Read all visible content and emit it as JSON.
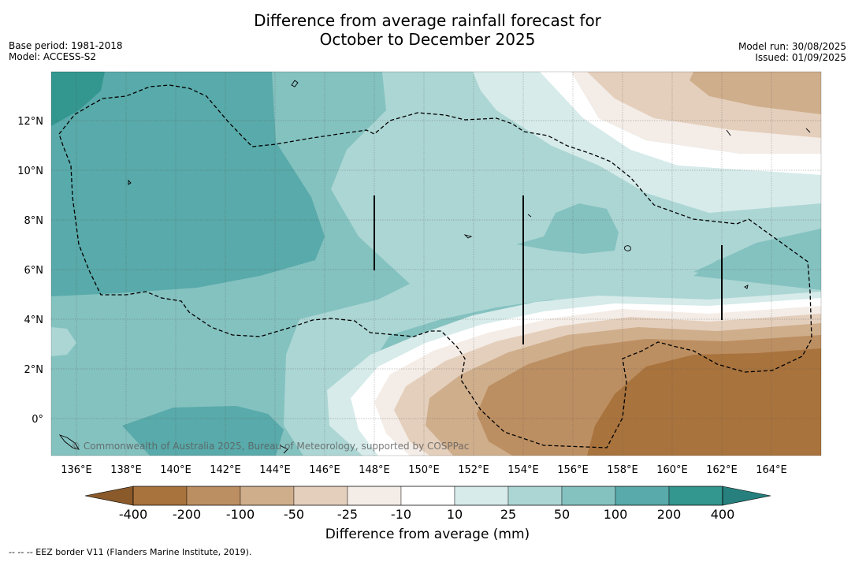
{
  "title_line1": "Difference from average rainfall forecast for",
  "title_line2": "October to December 2025",
  "base_period": "Base period: 1981-2018",
  "model": "Model: ACCESS-S2",
  "model_run": "Model run: 30/08/2025",
  "issued": "Issued: 01/09/2025",
  "copyright": "© Commonwealth of Australia 2025, Bureau of Meteorology, supported by COSPPac",
  "footer_note": "-- -- -- EEZ border V11 (Flanders Marine Institute, 2019).",
  "map": {
    "lon_ticks": [
      "136°E",
      "138°E",
      "140°E",
      "142°E",
      "144°E",
      "146°E",
      "148°E",
      "150°E",
      "152°E",
      "154°E",
      "156°E",
      "158°E",
      "160°E",
      "162°E",
      "164°E"
    ],
    "lat_ticks": [
      "0°",
      "2°N",
      "4°N",
      "6°N",
      "8°N",
      "10°N",
      "12°N"
    ],
    "lon_range": [
      135,
      166
    ],
    "lat_range": [
      -1.5,
      14
    ]
  },
  "colorbar": {
    "title": "Difference from average (mm)",
    "tick_labels": [
      "-400",
      "-200",
      "-100",
      "-50",
      "-25",
      "-10",
      "10",
      "25",
      "50",
      "100",
      "200",
      "400"
    ],
    "colors": {
      "under": "#8a5a2b",
      "bins": [
        "#a9733d",
        "#bc8f62",
        "#cfae8c",
        "#e4cfbc",
        "#f4ece6",
        "#ffffff",
        "#d6ebea",
        "#acd6d4",
        "#84c2c0",
        "#59aaaa",
        "#33968f"
      ],
      "over": "#27807d"
    }
  }
}
